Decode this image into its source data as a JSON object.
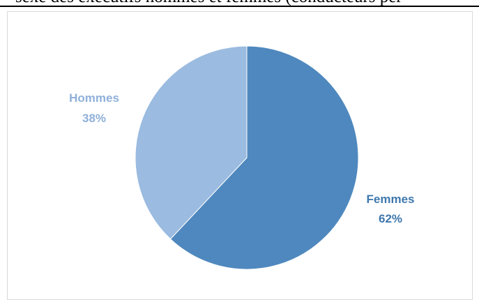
{
  "caption": {
    "text": "sexe des exécutifs hommes et femmes (conducteurs per"
  },
  "chart_data": {
    "type": "pie",
    "title": "",
    "slices": [
      {
        "label": "Femmes",
        "percent_label": "62%",
        "value": 62,
        "color": "#4f88be",
        "label_color": "#3f78ad"
      },
      {
        "label": "Hommes",
        "percent_label": "38%",
        "value": 38,
        "color": "#9bbbe0",
        "label_color": "#8fb0d9"
      }
    ],
    "start_angle_deg": 0,
    "direction": "clockwise",
    "legend": "none"
  }
}
